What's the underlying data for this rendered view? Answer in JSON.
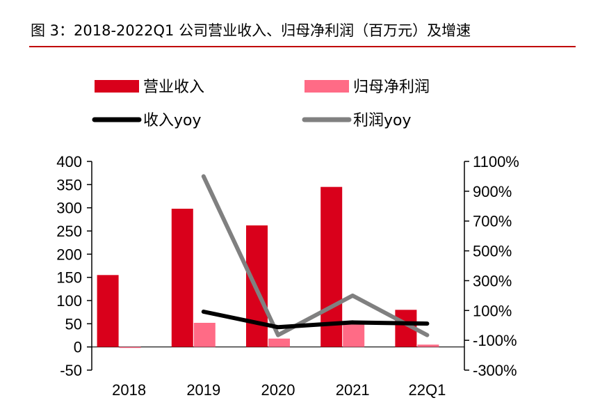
{
  "title": "图 3：2018-2022Q1 公司营业收入、归母净利润（百万元）及增速",
  "colors": {
    "revenue": "#d9001b",
    "profit": "#ff6b86",
    "revenue_yoy": "#000000",
    "profit_yoy": "#808080",
    "title_rule": "#c00000"
  },
  "chart_data": {
    "type": "bar",
    "categories": [
      "2018",
      "2019",
      "2020",
      "2021",
      "22Q1"
    ],
    "series": [
      {
        "name": "营业收入",
        "type": "bar",
        "axis": "left",
        "values": [
          155,
          298,
          262,
          345,
          80
        ]
      },
      {
        "name": "归母净利润",
        "type": "bar",
        "axis": "left",
        "values": [
          -2,
          52,
          18,
          50,
          5
        ]
      },
      {
        "name": "收入yoy",
        "type": "line",
        "axis": "right",
        "values": [
          null,
          92,
          -12,
          20,
          12
        ]
      },
      {
        "name": "利润yoy",
        "type": "line",
        "axis": "right",
        "values": [
          null,
          1000,
          -65,
          200,
          -65
        ]
      }
    ],
    "y_left": {
      "ticks": [
        "400",
        "350",
        "300",
        "250",
        "200",
        "150",
        "100",
        "50",
        "0",
        "-50"
      ],
      "ylim": [
        -50,
        400
      ]
    },
    "y_right": {
      "ticks": [
        "1100%",
        "900%",
        "700%",
        "500%",
        "300%",
        "100%",
        "-100%",
        "-300%"
      ],
      "ylim": [
        -300,
        1100
      ]
    },
    "legend_position": "top",
    "grid": false
  }
}
